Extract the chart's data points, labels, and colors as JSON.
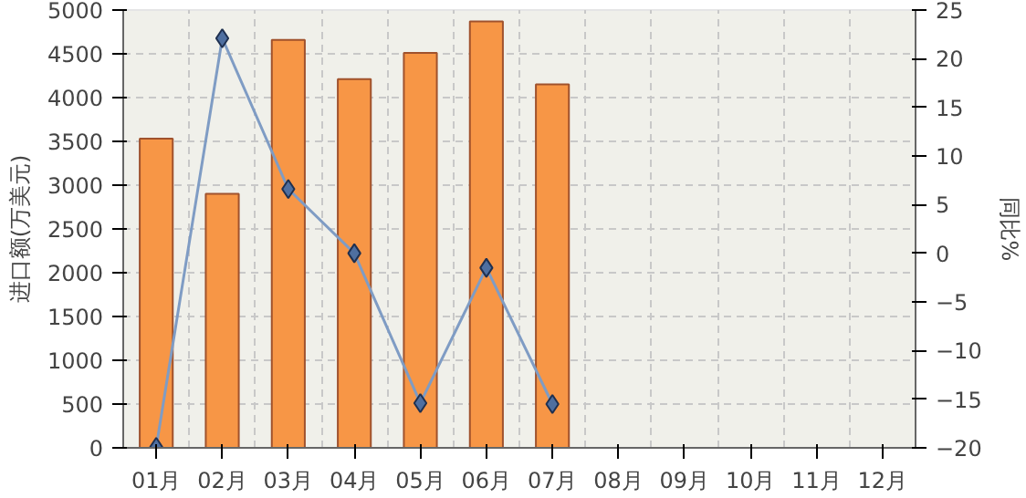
{
  "chart_data": {
    "type": "bar",
    "ylabel": "进口额(万美元)",
    "y2label": "同比%",
    "categories": [
      "01月",
      "02月",
      "03月",
      "04月",
      "05月",
      "06月",
      "07月",
      "08月",
      "09月",
      "10月",
      "11月",
      "12月"
    ],
    "series": [
      {
        "color": "#f79646",
        "values": [
          3530,
          2900,
          4660,
          4210,
          4510,
          4870,
          4150,
          null,
          null,
          null,
          null,
          null
        ]
      },
      {
        "type": "line",
        "axis": "y2",
        "color": "#7f9cc4",
        "marker": "diamond",
        "values": [
          -19.9,
          22.1,
          6.6,
          0,
          -15.4,
          -1.5,
          -15.5,
          null,
          null,
          null,
          null,
          null
        ]
      }
    ],
    "ylim": [
      0,
      5000
    ],
    "yticks": [
      0,
      500,
      1000,
      1500,
      2000,
      2500,
      3000,
      3500,
      4000,
      4500,
      5000
    ],
    "y2lim": [
      -20,
      25
    ],
    "y2ticks": [
      -20,
      -15,
      -10,
      -5,
      0,
      5,
      10,
      15,
      20,
      25
    ],
    "grid": true
  }
}
